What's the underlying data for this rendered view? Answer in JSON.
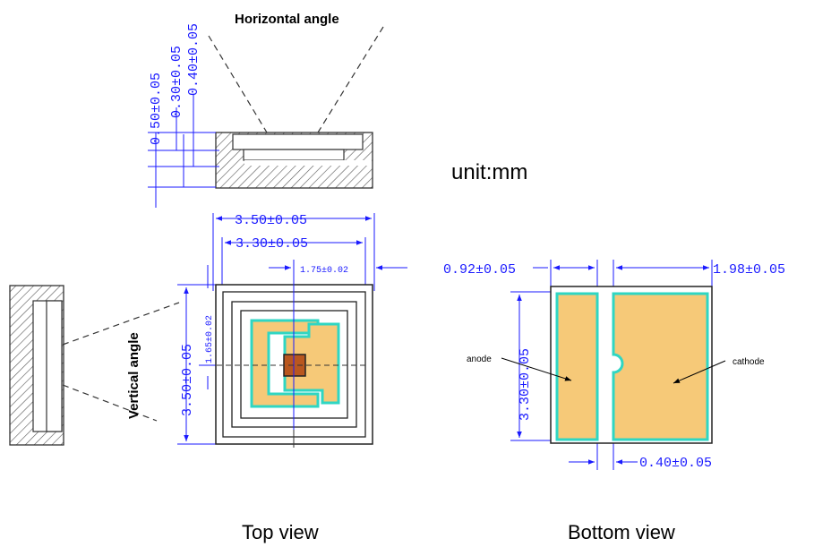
{
  "labels": {
    "horizontal_angle": "Horizontal angle",
    "vertical_angle": "Vertical angle",
    "unit": "unit:mm",
    "top_view": "Top view",
    "bottom_view": "Bottom view",
    "anode": "anode",
    "cathode": "cathode"
  },
  "dimensions": {
    "side_h_total": "0.50±0.05",
    "side_h_mid": "0.30±0.05",
    "side_h_top": "0.40±0.05",
    "top_width_outer": "3.50±0.05",
    "top_width_inner": "3.30±0.05",
    "top_center_x": "1.75±0.02",
    "top_height": "3.50±0.05",
    "top_center_y": "1.65±0.02",
    "bottom_left_width": "0.92±0.05",
    "bottom_right_width": "1.98±0.05",
    "bottom_height": "3.30±0.05",
    "bottom_gap": "0.40±0.05"
  },
  "colors": {
    "dimension": "#1a1aff",
    "pad": "#f6c978",
    "pad_outline": "#2fd6c3",
    "die": "#b9571f",
    "hatch": "#555555"
  }
}
